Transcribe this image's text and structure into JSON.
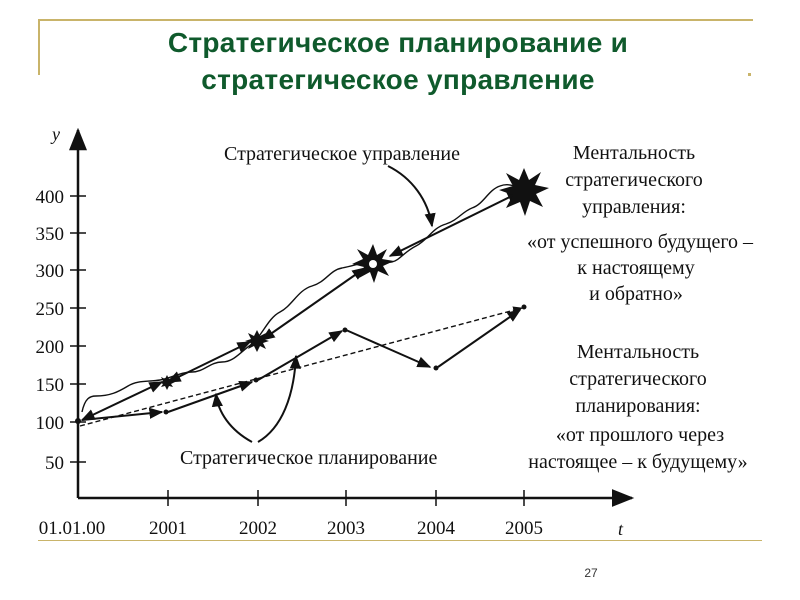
{
  "title": {
    "line1": "Стратегическое планирование и",
    "line2": "стратегическое управление"
  },
  "slide_number": "27",
  "diagram": {
    "y_axis_label": "y",
    "x_axis_label": "t",
    "y_ticks": [
      "400",
      "350",
      "300",
      "250",
      "200",
      "150",
      "100",
      "50"
    ],
    "x_ticks": [
      "01.01.00",
      "2001",
      "2002",
      "2003",
      "2004",
      "2005"
    ],
    "label_management": "Стратегическое управление",
    "label_planning": "Стратегическое планирование",
    "mentality_management": [
      "Ментальность",
      "стратегического",
      "управления:",
      "«от успешного будущего –",
      "к настоящему",
      "и обратно»"
    ],
    "mentality_planning": [
      "Ментальность",
      "стратегического",
      "планирования:",
      "«от прошлого через",
      "настоящее – к будущему»"
    ]
  }
}
